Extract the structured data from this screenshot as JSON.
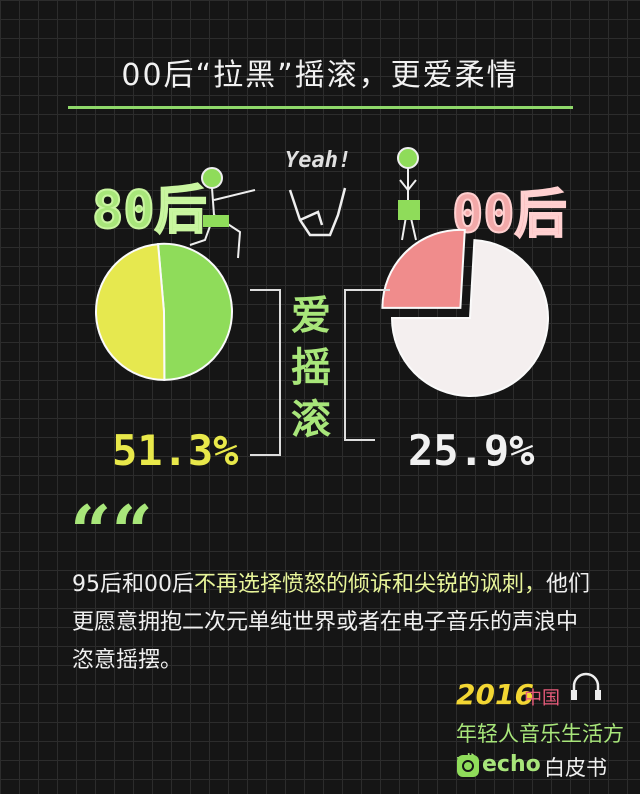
{
  "title": "00后“拉黑”摇滚，更爱柔情",
  "yeah_text": "Yeah!",
  "center_label": "爱摇滚",
  "quote_mark": "“",
  "body": {
    "part1": "95后和00后",
    "highlight": "不再选择愤怒的倾诉和尖锐的讽刺，",
    "part2": "他们更愿意拥抱二次元单纯世界或者在电子音乐的声浪中恣意摇摆。"
  },
  "logo": {
    "year": "2016",
    "country": "中国",
    "line2": "年轻人音乐生活方式",
    "brand": "echo",
    "line3": "白皮书"
  },
  "chart_data": [
    {
      "type": "pie",
      "title": "80后",
      "data_label": "51.3%",
      "slices": [
        {
          "label": "爱摇滚",
          "value": 51.3,
          "color": "#8fdc5a"
        },
        {
          "label": "",
          "value": 48.7,
          "color": "#e6e84f"
        }
      ]
    },
    {
      "type": "pie",
      "title": "00后",
      "data_label": "25.9%",
      "slices": [
        {
          "label": "爱摇滚",
          "value": 25.9,
          "color": "#f08c8c",
          "exploded": true
        },
        {
          "label": "",
          "value": 74.1,
          "color": "#f4efef"
        }
      ]
    }
  ]
}
